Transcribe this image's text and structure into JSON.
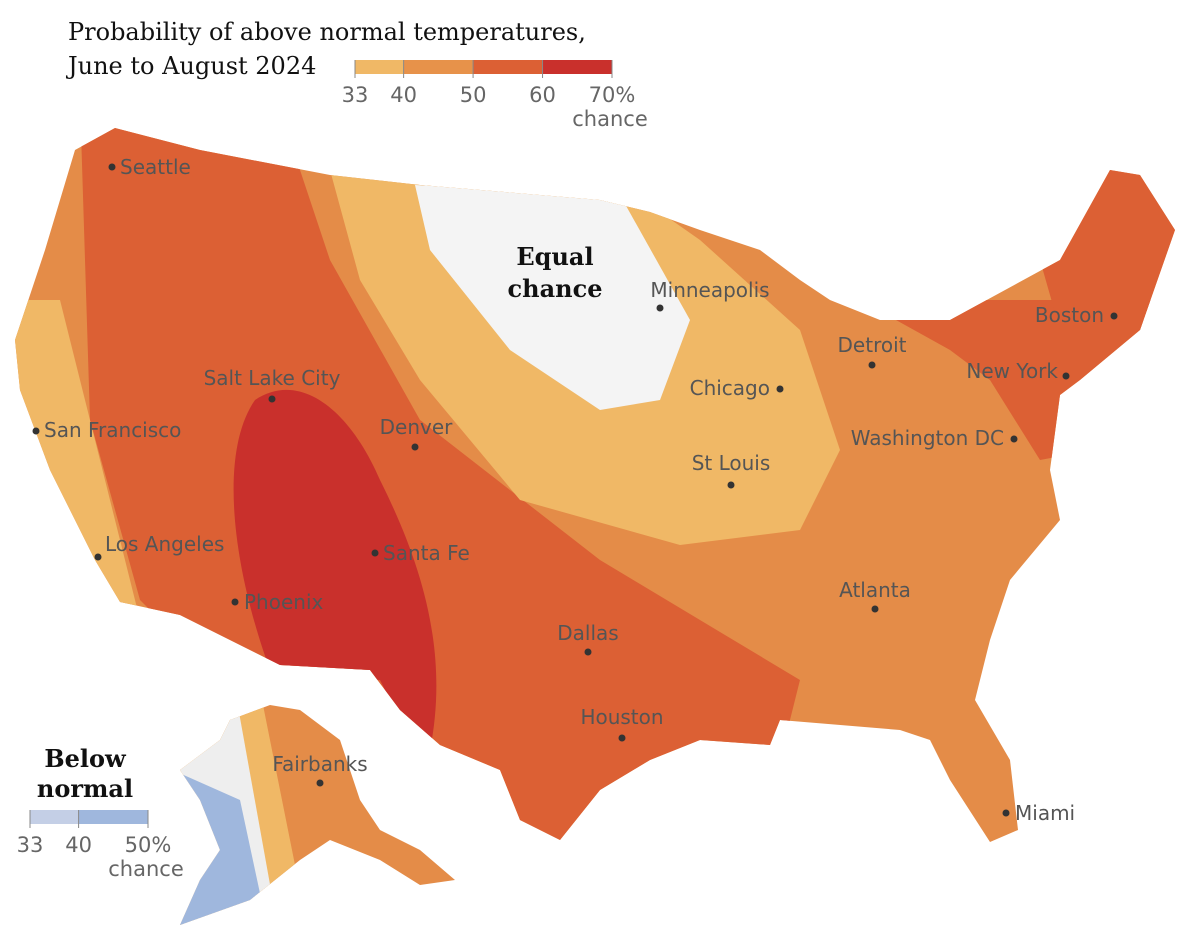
{
  "title_lines": [
    "Probability of above normal temperatures,",
    "June to August 2024"
  ],
  "above_legend": {
    "ticks": [
      33,
      40,
      50,
      60,
      {
        "value": 70,
        "label": "70%"
      }
    ],
    "unit": "chance",
    "colors": [
      "#f0b866",
      "#e7924a",
      "#dc6034",
      "#c9302c"
    ]
  },
  "below_legend": {
    "title_lines": [
      "Below",
      "normal"
    ],
    "ticks": [
      33,
      40,
      {
        "value": 50,
        "label": "50%"
      }
    ],
    "unit": "chance",
    "colors": [
      "#c4cfe6",
      "#9fb7dd"
    ]
  },
  "equal_label": [
    "Equal",
    "chance"
  ],
  "cities": [
    "Seattle",
    "San Francisco",
    "Los Angeles",
    "Phoenix",
    "Salt Lake City",
    "Denver",
    "Santa Fe",
    "Dallas",
    "Houston",
    "Minneapolis",
    "Chicago",
    "St Louis",
    "Detroit",
    "Washington DC",
    "New York",
    "Boston",
    "Atlanta",
    "Miami",
    "Fairbanks"
  ]
}
